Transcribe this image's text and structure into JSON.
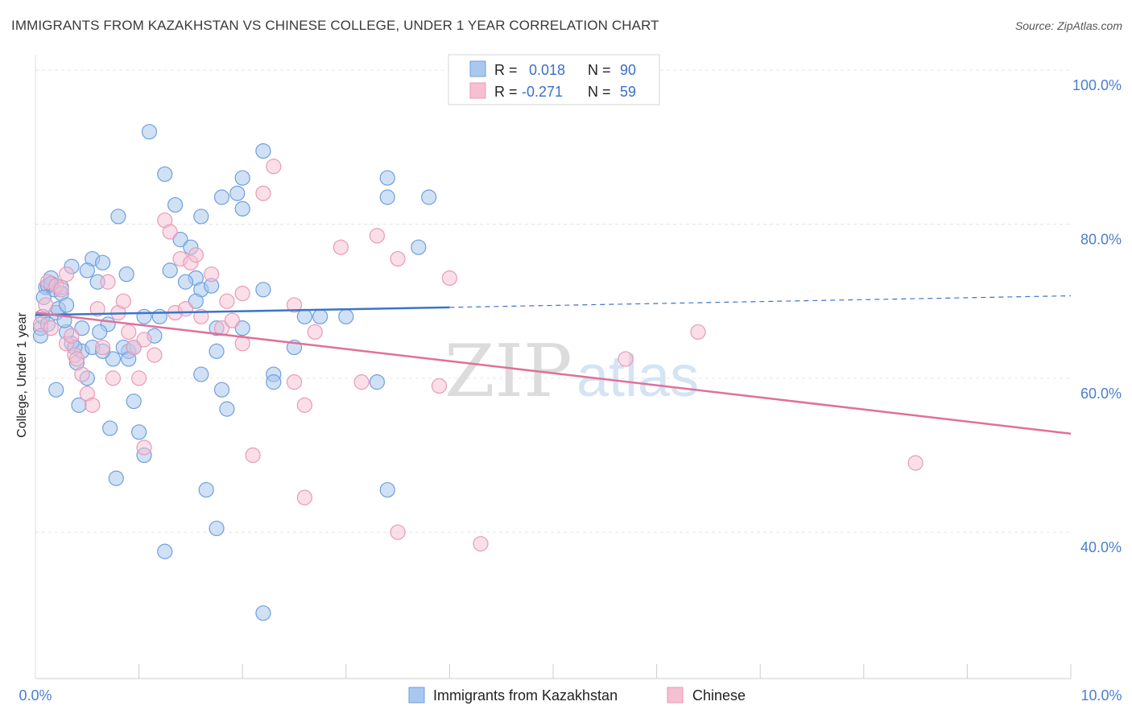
{
  "header": {
    "title": "IMMIGRANTS FROM KAZAKHSTAN VS CHINESE COLLEGE, UNDER 1 YEAR CORRELATION CHART",
    "source": "Source: ZipAtlas.com"
  },
  "watermark": {
    "zip": "ZIP",
    "atlas": "atlas"
  },
  "legend": {
    "r_label": "R =",
    "n_label": "N =",
    "rows": [
      {
        "r": "0.018",
        "n": "90"
      },
      {
        "r": "-0.271",
        "n": "59"
      }
    ]
  },
  "chart_data": {
    "type": "scatter",
    "title": "IMMIGRANTS FROM KAZAKHSTAN VS CHINESE COLLEGE, UNDER 1 YEAR CORRELATION CHART",
    "xlabel": "",
    "ylabel": "College, Under 1 year",
    "xlim": [
      0,
      10
    ],
    "ylim": [
      21,
      102
    ],
    "x_tick_labels": [
      "0.0%",
      "10.0%"
    ],
    "y_tick_values": [
      40,
      60,
      80,
      100
    ],
    "y_tick_labels": [
      "40.0%",
      "60.0%",
      "80.0%",
      "100.0%"
    ],
    "grid": true,
    "legend_position": "top-center",
    "colors": {
      "kazakhstan_fill": "#a9c8ef",
      "kazakhstan_stroke": "#6f9fdc",
      "kazakhstan_line": "#3a75c9",
      "chinese_fill": "#f6bfd2",
      "chinese_stroke": "#e99ab6",
      "chinese_line": "#e0709a",
      "tick_text": "#4a7fd0"
    },
    "series": [
      {
        "name": "Immigrants from Kazakhstan",
        "r": 0.018,
        "n": 90,
        "trend": {
          "x0": 0.0,
          "y0": 68.2,
          "x1": 4.0,
          "y1": 69.2,
          "dash_x1": 10.0,
          "dash_y1": 70.7
        },
        "points": [
          [
            0.05,
            66.5
          ],
          [
            0.05,
            65.5
          ],
          [
            0.07,
            68.0
          ],
          [
            0.1,
            71.8
          ],
          [
            0.12,
            72.0
          ],
          [
            0.15,
            72.2
          ],
          [
            0.18,
            71.5
          ],
          [
            0.2,
            68.5
          ],
          [
            0.22,
            69.0
          ],
          [
            0.25,
            71.8
          ],
          [
            0.15,
            73.0
          ],
          [
            0.3,
            66.0
          ],
          [
            0.28,
            67.5
          ],
          [
            0.35,
            64.5
          ],
          [
            0.4,
            62.0
          ],
          [
            0.45,
            63.5
          ],
          [
            0.2,
            58.5
          ],
          [
            0.42,
            56.5
          ],
          [
            0.55,
            75.5
          ],
          [
            0.5,
            74.0
          ],
          [
            0.6,
            72.5
          ],
          [
            0.65,
            75.0
          ],
          [
            0.7,
            67.0
          ],
          [
            0.62,
            66.0
          ],
          [
            0.75,
            62.5
          ],
          [
            0.9,
            63.5
          ],
          [
            0.85,
            64.0
          ],
          [
            0.8,
            81.0
          ],
          [
            0.88,
            73.5
          ],
          [
            0.95,
            64.0
          ],
          [
            0.95,
            57.0
          ],
          [
            1.0,
            53.0
          ],
          [
            0.72,
            53.5
          ],
          [
            1.05,
            68.0
          ],
          [
            1.1,
            92.0
          ],
          [
            1.25,
            86.5
          ],
          [
            1.35,
            82.5
          ],
          [
            1.4,
            78.0
          ],
          [
            1.5,
            77.0
          ],
          [
            1.55,
            73.0
          ],
          [
            1.6,
            81.0
          ],
          [
            1.6,
            71.5
          ],
          [
            1.7,
            72.0
          ],
          [
            1.75,
            66.5
          ],
          [
            1.75,
            63.5
          ],
          [
            1.8,
            58.5
          ],
          [
            1.85,
            56.0
          ],
          [
            1.6,
            60.5
          ],
          [
            1.8,
            83.5
          ],
          [
            1.95,
            84.0
          ],
          [
            2.0,
            86.0
          ],
          [
            2.0,
            82.0
          ],
          [
            2.2,
            89.5
          ],
          [
            2.2,
            71.5
          ],
          [
            2.3,
            60.5
          ],
          [
            2.3,
            59.5
          ],
          [
            2.5,
            64.0
          ],
          [
            2.6,
            68.0
          ],
          [
            2.75,
            68.0
          ],
          [
            3.0,
            68.0
          ],
          [
            3.3,
            59.5
          ],
          [
            3.4,
            86.0
          ],
          [
            3.4,
            83.5
          ],
          [
            3.4,
            45.5
          ],
          [
            3.7,
            77.0
          ],
          [
            3.8,
            83.5
          ],
          [
            1.65,
            45.5
          ],
          [
            1.75,
            40.5
          ],
          [
            1.25,
            37.5
          ],
          [
            2.2,
            29.5
          ],
          [
            0.78,
            47.0
          ],
          [
            1.05,
            50.0
          ],
          [
            0.15,
            72.3
          ],
          [
            0.35,
            74.5
          ],
          [
            0.25,
            71.0
          ],
          [
            0.55,
            64.0
          ],
          [
            0.45,
            66.5
          ],
          [
            0.65,
            63.5
          ],
          [
            0.9,
            62.5
          ],
          [
            1.3,
            74.0
          ],
          [
            1.45,
            72.5
          ],
          [
            1.55,
            70.0
          ],
          [
            1.2,
            68.0
          ],
          [
            2.0,
            66.5
          ],
          [
            0.08,
            70.5
          ],
          [
            0.12,
            67.0
          ],
          [
            0.3,
            69.5
          ],
          [
            0.38,
            64.0
          ],
          [
            0.5,
            60.0
          ],
          [
            1.15,
            65.5
          ]
        ]
      },
      {
        "name": "Chinese",
        "r": -0.271,
        "n": 59,
        "trend": {
          "x0": 0.0,
          "y0": 68.5,
          "x1": 10.0,
          "y1": 52.8
        },
        "points": [
          [
            0.05,
            67.0
          ],
          [
            0.1,
            69.5
          ],
          [
            0.12,
            72.5
          ],
          [
            0.2,
            72.0
          ],
          [
            0.25,
            71.5
          ],
          [
            0.3,
            64.5
          ],
          [
            0.35,
            65.5
          ],
          [
            0.38,
            63.0
          ],
          [
            0.45,
            60.5
          ],
          [
            0.5,
            58.0
          ],
          [
            0.55,
            56.5
          ],
          [
            0.6,
            69.0
          ],
          [
            0.65,
            64.0
          ],
          [
            0.7,
            72.5
          ],
          [
            0.8,
            68.5
          ],
          [
            0.85,
            70.0
          ],
          [
            0.9,
            66.0
          ],
          [
            0.95,
            64.0
          ],
          [
            1.0,
            60.0
          ],
          [
            1.05,
            51.0
          ],
          [
            1.05,
            65.0
          ],
          [
            1.15,
            63.0
          ],
          [
            1.25,
            80.5
          ],
          [
            1.3,
            79.0
          ],
          [
            1.35,
            68.5
          ],
          [
            1.4,
            75.5
          ],
          [
            1.5,
            75.0
          ],
          [
            1.55,
            76.0
          ],
          [
            1.6,
            68.0
          ],
          [
            1.7,
            73.5
          ],
          [
            1.8,
            66.5
          ],
          [
            1.85,
            70.0
          ],
          [
            1.9,
            67.5
          ],
          [
            2.0,
            71.0
          ],
          [
            2.0,
            64.5
          ],
          [
            2.1,
            50.0
          ],
          [
            2.2,
            84.0
          ],
          [
            2.3,
            87.5
          ],
          [
            2.5,
            69.5
          ],
          [
            2.5,
            59.5
          ],
          [
            2.6,
            56.5
          ],
          [
            2.6,
            44.5
          ],
          [
            2.7,
            66.0
          ],
          [
            2.95,
            77.0
          ],
          [
            3.15,
            59.5
          ],
          [
            3.3,
            78.5
          ],
          [
            3.5,
            75.5
          ],
          [
            3.5,
            40.0
          ],
          [
            3.9,
            59.0
          ],
          [
            4.0,
            73.0
          ],
          [
            4.3,
            38.5
          ],
          [
            5.7,
            62.5
          ],
          [
            6.4,
            66.0
          ],
          [
            8.5,
            49.0
          ],
          [
            0.3,
            73.5
          ],
          [
            0.4,
            62.5
          ],
          [
            0.75,
            60.0
          ],
          [
            1.45,
            69.0
          ],
          [
            0.15,
            66.5
          ]
        ]
      }
    ]
  },
  "bottom_legend": [
    "Immigrants from Kazakhstan",
    "Chinese"
  ]
}
